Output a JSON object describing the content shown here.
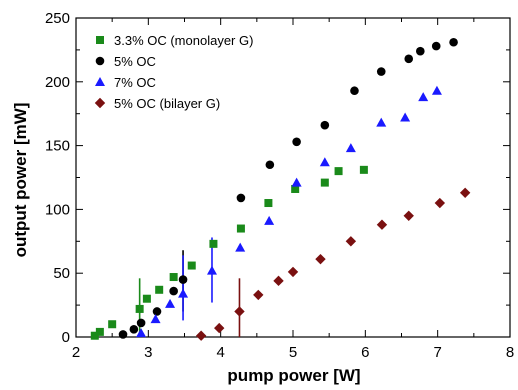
{
  "chart_data": {
    "type": "scatter",
    "xlabel": "pump power [W]",
    "ylabel": "output power [mW]",
    "xlim": [
      2,
      8
    ],
    "ylim": [
      0,
      250
    ],
    "xticks": [
      2,
      3,
      4,
      5,
      6,
      7,
      8
    ],
    "yticks": [
      0,
      50,
      100,
      150,
      200,
      250
    ],
    "grid": false,
    "legend_position": "top-left",
    "series": [
      {
        "name": "3.3% OC (monolayer G)",
        "marker": "square",
        "color": "#1a8a1a",
        "points": [
          [
            2.26,
            1
          ],
          [
            2.33,
            4
          ],
          [
            2.5,
            10
          ],
          [
            2.88,
            22
          ],
          [
            2.98,
            30
          ],
          [
            3.15,
            37
          ],
          [
            3.35,
            47
          ],
          [
            3.6,
            56
          ],
          [
            3.9,
            73
          ],
          [
            4.28,
            85
          ],
          [
            4.66,
            105
          ],
          [
            5.03,
            116
          ],
          [
            5.44,
            121
          ],
          [
            5.63,
            130
          ],
          [
            5.98,
            131
          ]
        ],
        "error_bars": [
          [
            2.88,
            0,
            46
          ]
        ]
      },
      {
        "name": "5% OC",
        "marker": "circle",
        "color": "#000000",
        "points": [
          [
            2.65,
            2
          ],
          [
            2.8,
            6
          ],
          [
            2.9,
            11
          ],
          [
            3.12,
            20
          ],
          [
            3.35,
            36
          ],
          [
            3.48,
            45
          ],
          [
            4.28,
            109
          ],
          [
            4.68,
            135
          ],
          [
            5.05,
            153
          ],
          [
            5.44,
            166
          ],
          [
            5.85,
            193
          ],
          [
            6.22,
            208
          ],
          [
            6.6,
            218
          ],
          [
            6.76,
            224
          ],
          [
            6.98,
            228
          ],
          [
            7.22,
            231
          ]
        ],
        "error_bars": [
          [
            3.48,
            20,
            68
          ]
        ]
      },
      {
        "name": "7% OC",
        "marker": "triangle",
        "color": "#1a1aff",
        "points": [
          [
            2.9,
            3
          ],
          [
            3.1,
            14
          ],
          [
            3.3,
            26
          ],
          [
            3.48,
            34
          ],
          [
            3.88,
            52
          ],
          [
            4.27,
            70
          ],
          [
            4.67,
            91
          ],
          [
            5.05,
            121
          ],
          [
            5.44,
            137
          ],
          [
            5.8,
            148
          ],
          [
            6.22,
            168
          ],
          [
            6.55,
            172
          ],
          [
            6.8,
            188
          ],
          [
            6.99,
            193
          ]
        ],
        "error_bars": [
          [
            3.48,
            13,
            64
          ],
          [
            3.88,
            27,
            78
          ]
        ]
      },
      {
        "name": "5% OC (bilayer G)",
        "marker": "diamond",
        "color": "#7a1010",
        "points": [
          [
            3.73,
            1
          ],
          [
            3.98,
            7
          ],
          [
            4.26,
            20
          ],
          [
            4.52,
            33
          ],
          [
            4.8,
            44
          ],
          [
            5.0,
            51
          ],
          [
            5.38,
            61
          ],
          [
            5.8,
            75
          ],
          [
            6.23,
            88
          ],
          [
            6.6,
            95
          ],
          [
            7.03,
            105
          ],
          [
            7.38,
            113
          ]
        ],
        "error_bars": [
          [
            4.26,
            0,
            46
          ]
        ]
      }
    ]
  }
}
